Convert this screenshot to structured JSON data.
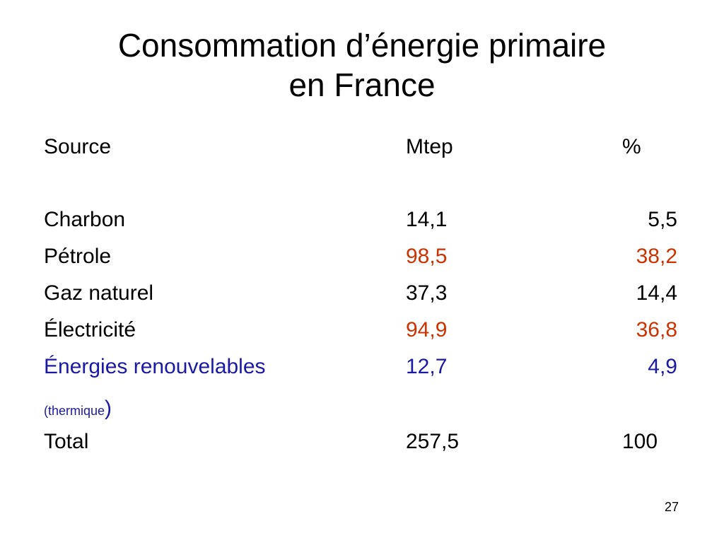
{
  "title": {
    "line1": "Consommation d’énergie primaire",
    "line2": "en France"
  },
  "table": {
    "headers": {
      "source": "Source",
      "mtep": "Mtep",
      "pct": "%"
    },
    "rows": [
      {
        "source": "Charbon",
        "mtep": "14,1",
        "pct": "5,5",
        "color": "#000000"
      },
      {
        "source": "Pétrole",
        "mtep": "98,5",
        "pct": "38,2",
        "color": "#cc3300"
      },
      {
        "source": "Gaz naturel",
        "mtep": "37,3",
        "pct": "14,4",
        "color": "#000000"
      },
      {
        "source": "Électricité",
        "mtep": "94,9",
        "pct": "36,8",
        "color": "#cc3300"
      },
      {
        "source": "Énergies renouvelables",
        "mtep": "12,7",
        "pct": "4,9",
        "color": "#1a1aa6"
      }
    ],
    "note_open": "(thermique",
    "note_close": ")",
    "total": {
      "source": "Total",
      "mtep": "257,5",
      "pct": "100"
    }
  },
  "page_number": "27"
}
